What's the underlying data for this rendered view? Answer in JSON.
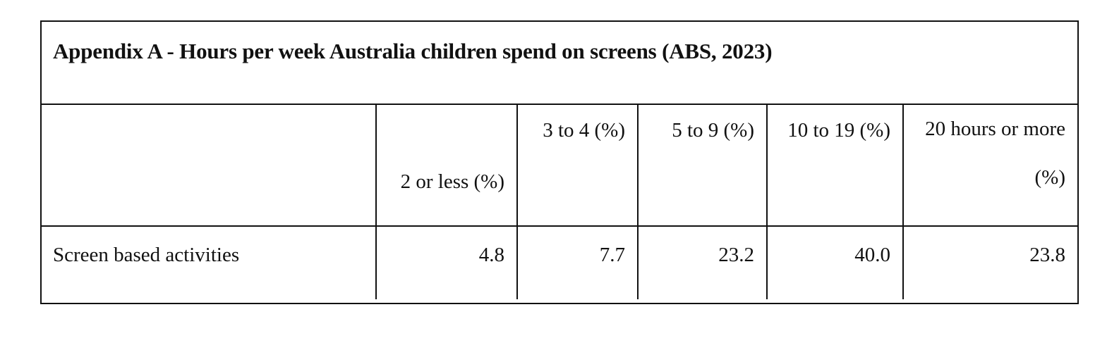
{
  "title": "Appendix A - Hours per week Australia children spend on screens (ABS, 2023)",
  "table": {
    "columns": [
      {
        "label": "2 or less (%)"
      },
      {
        "label": "3 to 4 (%)"
      },
      {
        "label": "5 to 9 (%)"
      },
      {
        "label": "10 to 19 (%)"
      },
      {
        "label": "20 hours or more (%)"
      }
    ],
    "rows": [
      {
        "label": "Screen based activities",
        "values": [
          "4.8",
          "7.7",
          "23.2",
          "40.0",
          "23.8"
        ]
      }
    ]
  }
}
